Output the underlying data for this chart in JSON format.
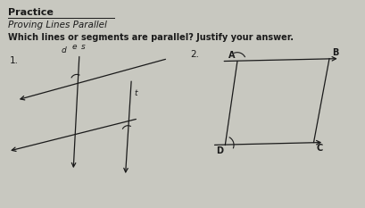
{
  "bg_color": "#c8c8c0",
  "text_color": "#1a1a1a",
  "fig_width": 4.1,
  "fig_height": 2.33,
  "dpi": 100,
  "header_top": "Practice",
  "subtitle": "Proving Lines Parallel",
  "question": "Which lines or segments are parallel? Justify your answer."
}
